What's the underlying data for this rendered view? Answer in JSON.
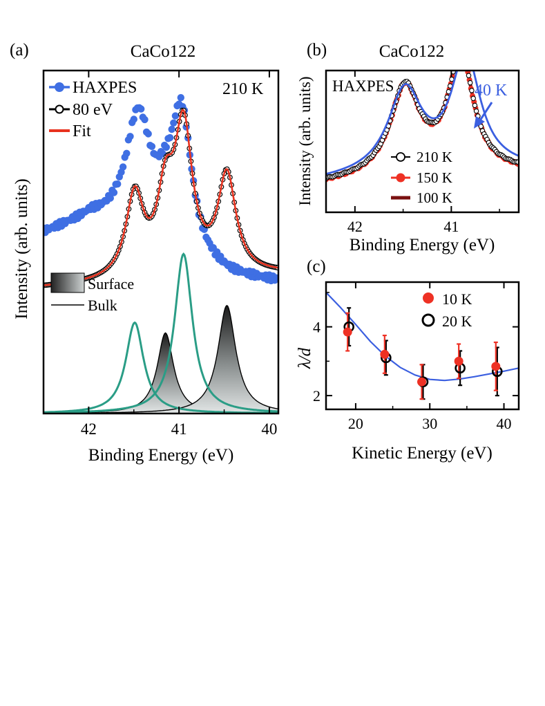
{
  "colors": {
    "haxpes": "#3f6fe3",
    "fit": "#e8321e",
    "bulk_green": "#2a9d86",
    "curve_40k": "#3b5fe0",
    "red_points": "#ee3124",
    "dark_red": "#7a1010",
    "black": "#000000"
  },
  "chart_data": [
    {
      "panel": "(a)",
      "type": "line",
      "title": "CaCo122",
      "xlabel": "Binding Energy (eV)",
      "ylabel": "Intensity (arb. units)",
      "xlim": [
        42.5,
        39.9
      ],
      "ylim": [
        0,
        1
      ],
      "x_reversed": true,
      "xticks": [
        42,
        41,
        40
      ],
      "temperature_label": "210 K",
      "legend": [
        "HAXPES",
        "80 eV",
        "Fit"
      ],
      "shade_legend": [
        "Surface",
        "Bulk"
      ],
      "series": [
        {
          "name": "HAXPES",
          "style": "filled-circles",
          "description": "broad spectrum, offset 0.52",
          "peaks": [
            {
              "center": 41.45,
              "gamma": 0.17,
              "amp": 0.33
            },
            {
              "center": 40.97,
              "gamma": 0.14,
              "amp": 0.42
            },
            {
              "center": 41.15,
              "gamma": 0.13,
              "amp": 0.08
            }
          ],
          "baseline": [
            0.52,
            0.56,
            0.52,
            0.42,
            0.39,
            0.38
          ]
        },
        {
          "name": "80 eV",
          "style": "open-circles",
          "description": "sum of surface and bulk components, offset 0.40"
        },
        {
          "name": "Fit",
          "style": "line"
        },
        {
          "name": "Surface",
          "style": "filled-gradient",
          "peaks": [
            {
              "center": 41.15,
              "gamma": 0.11,
              "amp": 0.235
            },
            {
              "center": 40.47,
              "gamma": 0.12,
              "amp": 0.315
            }
          ]
        },
        {
          "name": "Bulk",
          "style": "line-green",
          "peaks": [
            {
              "center": 41.49,
              "gamma": 0.12,
              "amp": 0.265
            },
            {
              "center": 40.95,
              "gamma": 0.12,
              "amp": 0.465
            }
          ]
        }
      ]
    },
    {
      "panel": "(b)",
      "type": "line",
      "title": "CaCo122",
      "inner_label": "HAXPES",
      "xlabel": "Binding Energy (eV)",
      "ylabel": "Intensity (arb. units)",
      "xlim": [
        42.3,
        40.3
      ],
      "ylim": [
        0,
        1
      ],
      "x_reversed": true,
      "xticks": [
        42,
        41
      ],
      "legend": [
        "210 K",
        "150 K",
        "100 K"
      ],
      "annotation": "40 K",
      "series": [
        {
          "name": "210 K",
          "style": "open-circles"
        },
        {
          "name": "150 K",
          "style": "filled-circles"
        },
        {
          "name": "100 K",
          "style": "thick-line"
        },
        {
          "name": "40 K",
          "style": "line",
          "peak_shift_ev": -0.05
        }
      ],
      "peaks": [
        {
          "center": 41.48,
          "gamma": 0.19,
          "amp": 0.62
        },
        {
          "center": 40.9,
          "gamma": 0.16,
          "amp": 0.81
        }
      ]
    },
    {
      "panel": "(c)",
      "type": "scatter",
      "xlabel": "Kinetic Energy (eV)",
      "ylabel": "λ/d",
      "xlim": [
        16,
        42
      ],
      "ylim": [
        1.6,
        5.3
      ],
      "xticks": [
        20,
        30,
        40
      ],
      "yticks": [
        2,
        4
      ],
      "legend": [
        "10 K",
        "20 K"
      ],
      "series": [
        {
          "name": "10 K",
          "style": "filled-circles",
          "x": [
            19,
            24,
            29,
            34,
            39
          ],
          "y": [
            3.85,
            3.2,
            2.4,
            3.0,
            2.85
          ],
          "err": [
            0.55,
            0.55,
            0.5,
            0.5,
            0.7
          ]
        },
        {
          "name": "20 K",
          "style": "open-circles",
          "x": [
            19,
            24,
            29,
            34,
            39
          ],
          "y": [
            4.0,
            3.1,
            2.4,
            2.8,
            2.7
          ],
          "err": [
            0.55,
            0.5,
            0.5,
            0.5,
            0.7
          ]
        }
      ],
      "fit_curve": {
        "x": [
          16,
          18,
          20,
          22,
          24,
          26,
          28,
          30,
          32,
          34,
          36,
          38,
          40,
          42
        ],
        "y": [
          5.0,
          4.55,
          4.07,
          3.57,
          3.15,
          2.82,
          2.6,
          2.47,
          2.44,
          2.48,
          2.55,
          2.63,
          2.71,
          2.8
        ]
      }
    }
  ]
}
